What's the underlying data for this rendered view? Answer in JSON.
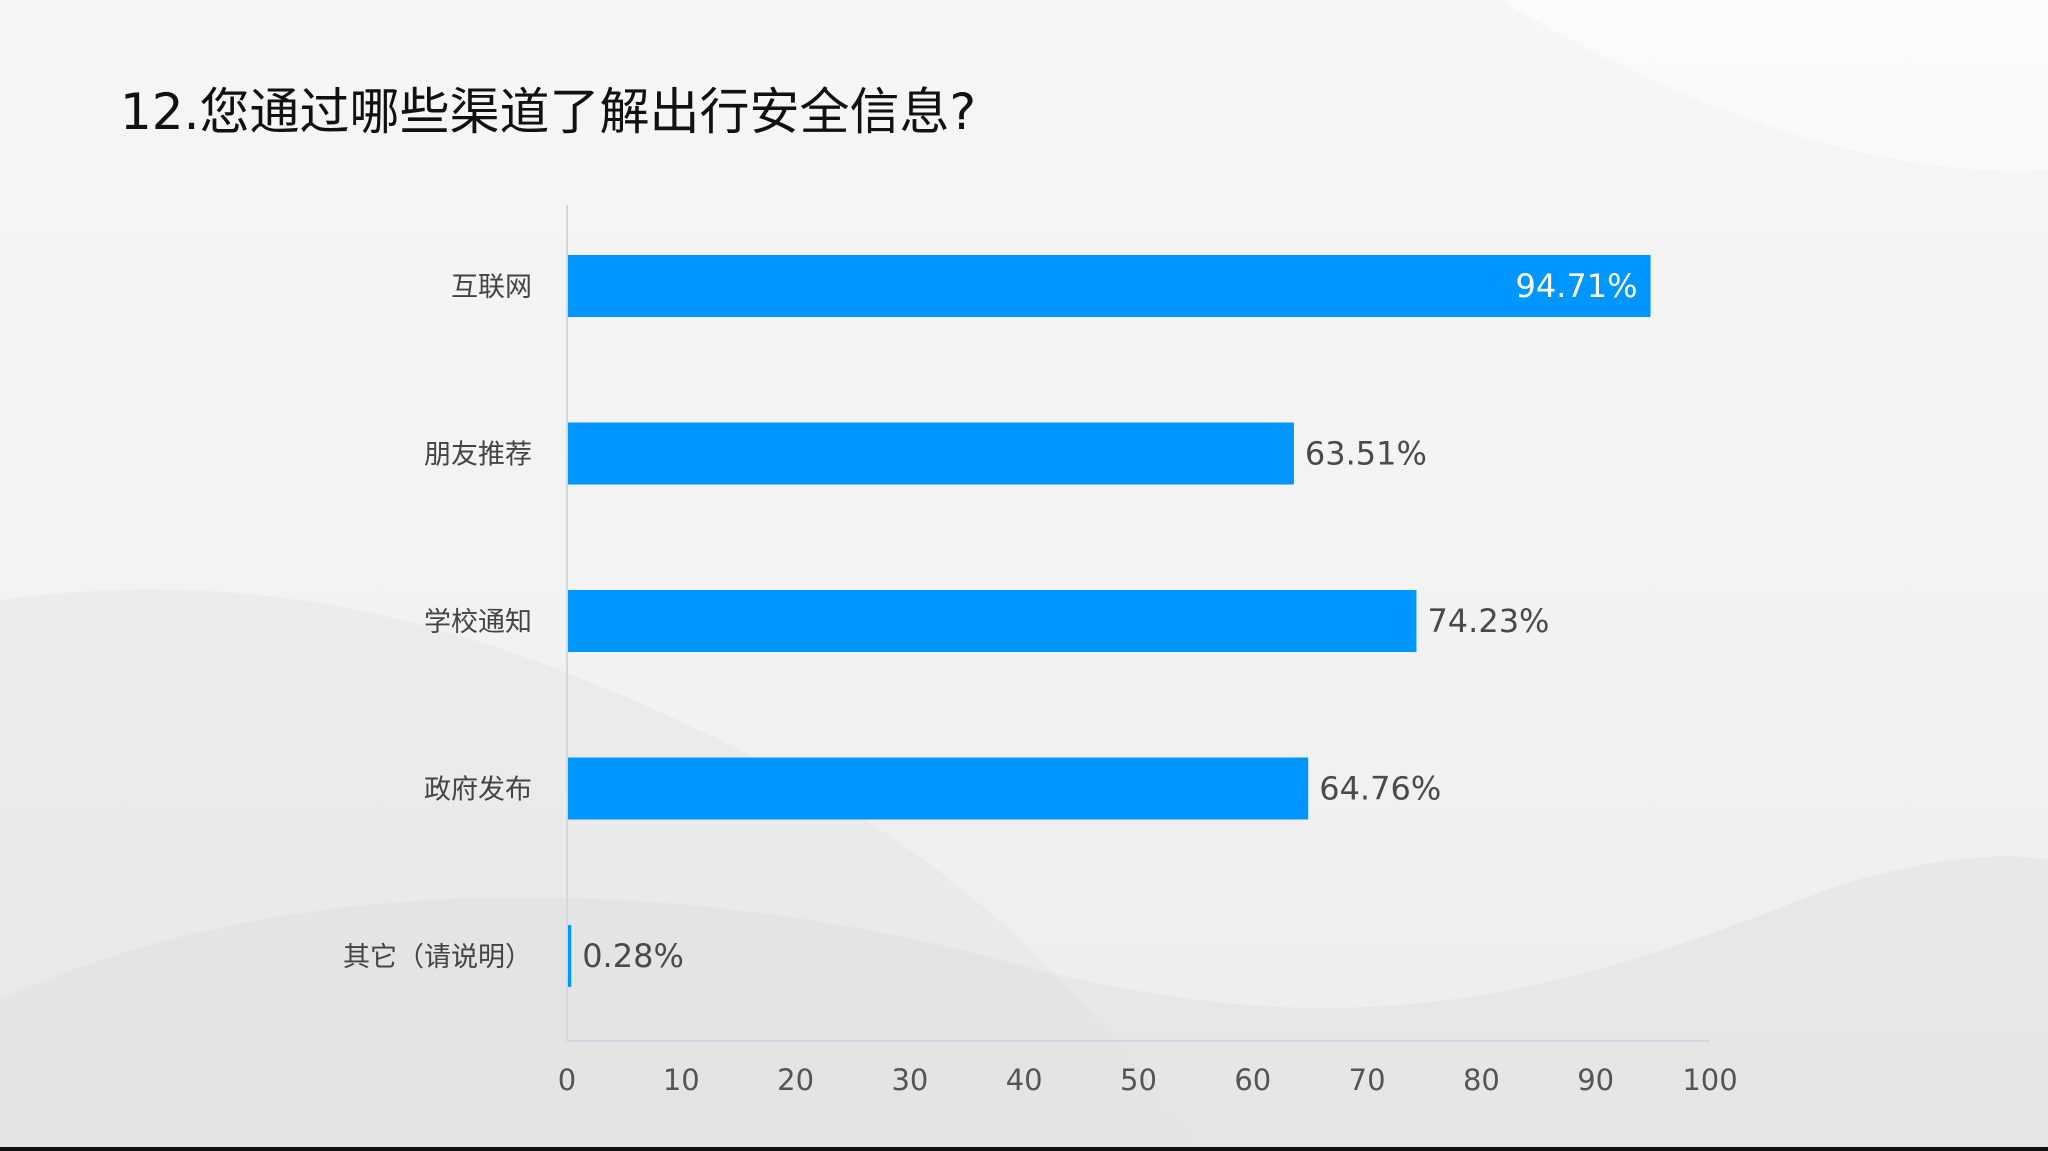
{
  "slide": {
    "title": "12.您通过哪些渠道了解出行安全信息?"
  },
  "chart_data": {
    "type": "bar",
    "orientation": "horizontal",
    "title": "12.您通过哪些渠道了解出行安全信息?",
    "categories": [
      "互联网",
      "朋友推荐",
      "学校通知",
      "政府发布",
      "其它（请说明）"
    ],
    "values": [
      94.71,
      63.51,
      74.23,
      64.76,
      0.28
    ],
    "value_labels": [
      "94.71%",
      "63.51%",
      "74.23%",
      "64.76%",
      "0.28%"
    ],
    "xlim": [
      0,
      100
    ],
    "xticks": [
      "0",
      "10",
      "20",
      "30",
      "40",
      "50",
      "60",
      "70",
      "80",
      "90",
      "100"
    ],
    "xlabel": "",
    "ylabel": "",
    "grid": false,
    "legend": "none",
    "colors": {
      "bar": "#0096FF",
      "axis": "#cfd8e3"
    }
  }
}
